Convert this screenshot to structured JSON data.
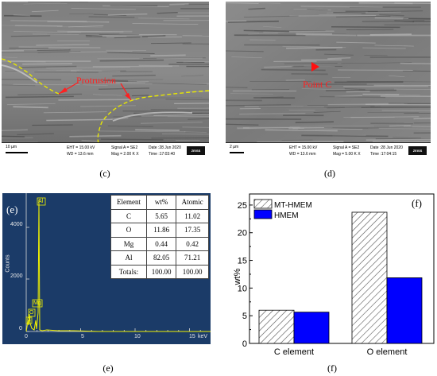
{
  "panel_c": {
    "annotation": "Protrusion",
    "scale_label": "10 µm",
    "info": [
      "EHT = 15.00 kV",
      "WD = 13.6 mm",
      "Signal A = SE2",
      "Mag = 2.00 K X",
      "Date :28 Jun 2020",
      "Time :17:03:40"
    ],
    "logo": "ZEISS",
    "caption": "(c)"
  },
  "panel_d": {
    "annotation": "Point C",
    "scale_label": "2 µm",
    "info": [
      "EHT = 15.00 kV",
      "WD = 13.6 mm",
      "Signal A = SE2",
      "Mag = 5.00 K X",
      "Date :28 Jun 2020",
      "Time :17:04:15"
    ],
    "logo": "ZEISS",
    "caption": "(d)"
  },
  "panel_e": {
    "panel_label": "(e)",
    "ylabel": "Counts",
    "xlabel": "keV",
    "y_ticks": [
      "0",
      "2000",
      "4000"
    ],
    "x_ticks": [
      "0",
      "5",
      "10",
      "15"
    ],
    "peak_labels": [
      "Al",
      "Mg",
      "O",
      "C"
    ],
    "caption": "(e)",
    "table": {
      "headers": [
        "Element",
        "wt%",
        "Atomic"
      ],
      "rows": [
        [
          "C",
          "5.65",
          "11.02"
        ],
        [
          "O",
          "11.86",
          "17.35"
        ],
        [
          "Mg",
          "0.44",
          "0.42"
        ],
        [
          "Al",
          "82.05",
          "71.21"
        ],
        [
          "Totals:",
          "100.00",
          "100.00"
        ]
      ]
    }
  },
  "chart_data": {
    "type": "bar",
    "panel_label": "(f)",
    "ylabel": "wt%",
    "categories": [
      "C element",
      "O element"
    ],
    "series": [
      {
        "name": "MT-HMEM",
        "values": [
          6.0,
          23.7
        ]
      },
      {
        "name": "HMEM",
        "values": [
          5.65,
          11.86
        ]
      }
    ],
    "ylim": [
      0,
      27
    ],
    "y_ticks": [
      "0",
      "5",
      "10",
      "15",
      "20",
      "25"
    ],
    "legend_position": "top-left",
    "caption": "(f)"
  },
  "colors": {
    "hmem_bar": "#0000ff",
    "eds_background": "#1b3b68",
    "spectrum": "#f2f200",
    "annotation": "#ff2020",
    "outline": "#e8e800"
  }
}
